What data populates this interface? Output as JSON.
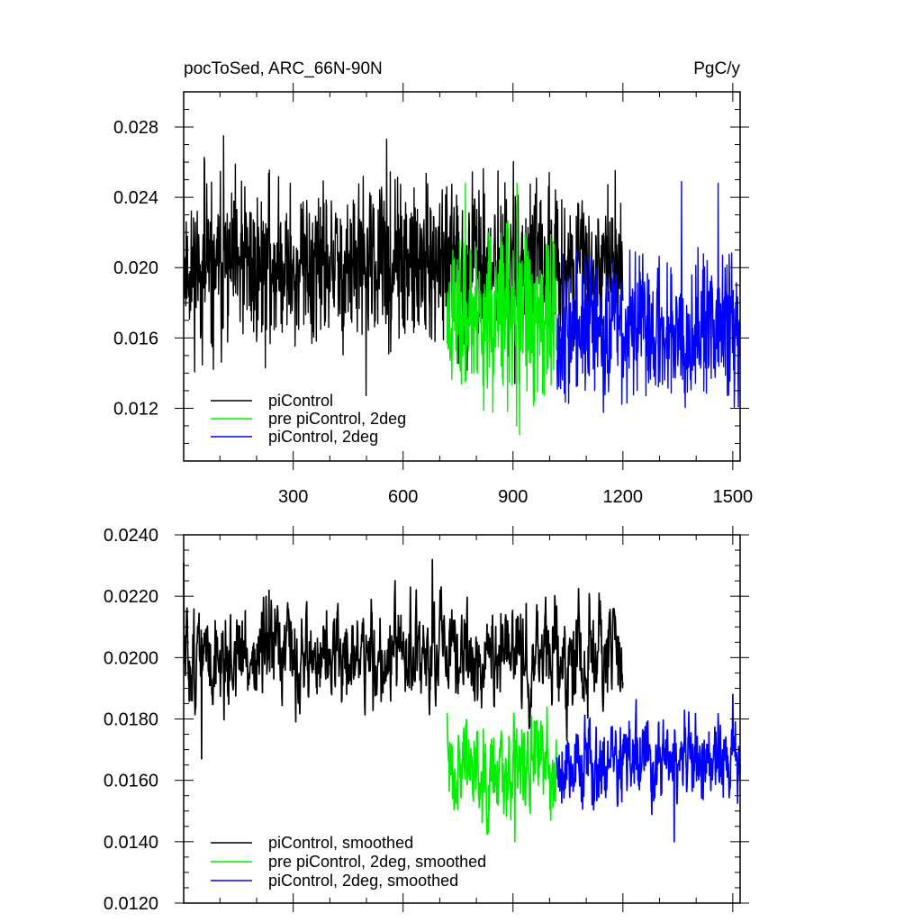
{
  "chart_data": [
    {
      "type": "line",
      "title": "pocToSed, ARC_66N-90N",
      "units": "PgC/y",
      "xlim": [
        1,
        1520
      ],
      "ylim": [
        0.009,
        0.03
      ],
      "xticks": [
        300,
        600,
        900,
        1200,
        1500
      ],
      "yticks": [
        0.012,
        0.016,
        0.02,
        0.024,
        0.028
      ],
      "ytick_labels": [
        "0.012",
        "0.016",
        "0.020",
        "0.024",
        "0.028"
      ],
      "grid": false,
      "legend_position": "lower-left",
      "series": [
        {
          "name": "piControl",
          "color": "#000000",
          "x_range": [
            1,
            1200
          ],
          "mean": 0.02,
          "noise": 0.0022,
          "seed": 11,
          "peaks": [
            [
              1,
              0.0262
            ],
            [
              110,
              0.0275
            ],
            [
              555,
              0.0273
            ]
          ]
        },
        {
          "name": "pre piControl, 2deg",
          "color": "#00ee00",
          "x_range": [
            720,
            1020
          ],
          "mean": 0.0172,
          "noise": 0.0024,
          "seed": 23,
          "peaks": [
            [
              770,
              0.0248
            ],
            [
              910,
              0.011
            ],
            [
              918,
              0.0105
            ]
          ]
        },
        {
          "name": "piControl, 2deg",
          "color": "#0000ff",
          "x_range": [
            1020,
            1520
          ],
          "mean": 0.0166,
          "noise": 0.002,
          "seed": 37,
          "peaks": [
            [
              1360,
              0.0249
            ],
            [
              1460,
              0.0248
            ]
          ]
        }
      ]
    },
    {
      "type": "line",
      "xlim": [
        1,
        1520
      ],
      "ylim": [
        0.012,
        0.024
      ],
      "xticks": [
        300,
        600,
        900,
        1200,
        1500
      ],
      "yticks": [
        0.012,
        0.014,
        0.016,
        0.018,
        0.02,
        0.022,
        0.024
      ],
      "ytick_labels": [
        "0.0120",
        "0.0140",
        "0.0160",
        "0.0180",
        "0.0200",
        "0.0220",
        "0.0240"
      ],
      "grid": false,
      "legend_position": "lower-left",
      "series": [
        {
          "name": "piControl, smoothed",
          "color": "#000000",
          "x_range": [
            1,
            1200
          ],
          "mean": 0.02,
          "noise": 0.0011,
          "seed": 51,
          "peaks": [
            [
              1,
              0.0231
            ],
            [
              680,
              0.0232
            ],
            [
              50,
              0.0167
            ]
          ]
        },
        {
          "name": "pre piControl, 2deg, smoothed",
          "color": "#00ee00",
          "x_range": [
            720,
            1020
          ],
          "mean": 0.0166,
          "noise": 0.0011,
          "seed": 63,
          "peaks": [
            [
              720,
              0.0182
            ],
            [
              905,
              0.014
            ]
          ]
        },
        {
          "name": "piControl, 2deg, smoothed",
          "color": "#0000ff",
          "x_range": [
            1020,
            1520
          ],
          "mean": 0.0166,
          "noise": 0.001,
          "seed": 79,
          "peaks": [
            [
              1340,
              0.014
            ],
            [
              1500,
              0.0188
            ]
          ]
        }
      ]
    }
  ]
}
